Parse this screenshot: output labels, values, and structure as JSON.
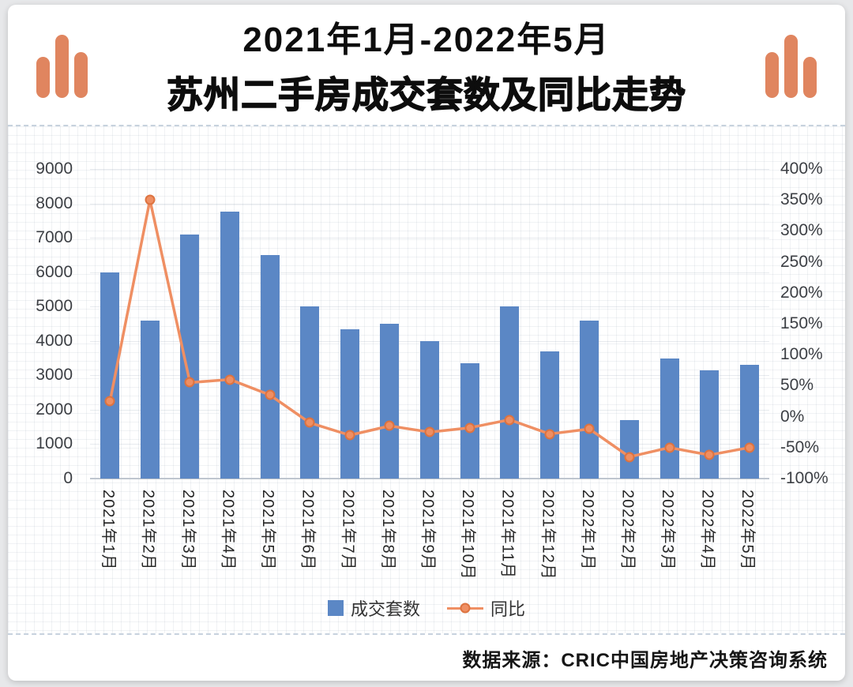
{
  "header": {
    "title_line1": "2021年1月-2022年5月",
    "title_line2": "苏州二手房成交套数及同比走势"
  },
  "icons": {
    "left": "bar-chart-icon",
    "right": "bar-chart-icon"
  },
  "legend": {
    "bars_label": "成交套数",
    "line_label": "同比"
  },
  "footer": {
    "source_text": "数据来源：CRIC中国房地产决策咨询系统"
  },
  "colors": {
    "bar": "#5b87c5",
    "line": "#ef8f63",
    "line_marker_border": "#dd7340",
    "icon": "#e0855f",
    "dashed_divider": "#c7d2de"
  },
  "chart_data": {
    "type": "bar",
    "subtype": "bar+line combo, dual axis",
    "title": "2021年1月-2022年5月 苏州二手房成交套数及同比走势",
    "categories": [
      "2021年1月",
      "2021年2月",
      "2021年3月",
      "2021年4月",
      "2021年5月",
      "2021年6月",
      "2021年7月",
      "2021年8月",
      "2021年9月",
      "2021年10月",
      "2021年11月",
      "2021年12月",
      "2022年1月",
      "2022年2月",
      "2022年3月",
      "2022年4月",
      "2022年5月"
    ],
    "series": [
      {
        "name": "成交套数",
        "type": "bar",
        "axis": "left",
        "values": [
          6000,
          4600,
          7100,
          7750,
          6500,
          5000,
          4350,
          4500,
          4000,
          3350,
          5000,
          3700,
          4600,
          1700,
          3500,
          3150,
          3300
        ]
      },
      {
        "name": "同比",
        "type": "line",
        "axis": "right",
        "unit": "%",
        "values": [
          25,
          350,
          55,
          60,
          35,
          -10,
          -30,
          -15,
          -25,
          -18,
          -5,
          -28,
          -20,
          -65,
          -50,
          -62,
          -50
        ]
      }
    ],
    "left_axis": {
      "min": 0,
      "max": 9000,
      "tick_step": 1000,
      "tick_labels": [
        "9000",
        "8000",
        "7000",
        "6000",
        "5000",
        "4000",
        "3000",
        "2000",
        "1000",
        "0"
      ]
    },
    "right_axis": {
      "min": -100,
      "max": 400,
      "tick_step": 50,
      "tick_labels": [
        "400%",
        "350%",
        "300%",
        "250%",
        "200%",
        "150%",
        "100%",
        "50%",
        "0%",
        "-50%",
        "-100%"
      ]
    },
    "grid": "fine graph-paper minor grid, subtle horizontal major lines",
    "legend_position": "bottom-center"
  }
}
